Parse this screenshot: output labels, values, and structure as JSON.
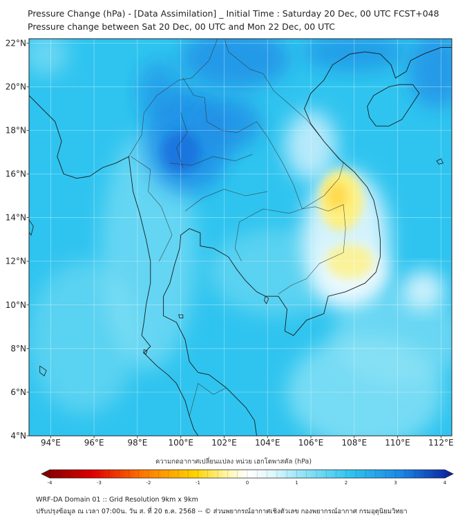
{
  "title_line1": "Pressure Change (hPa) - [Data Assimilation] _ Initial Time : Saturday 20 Dec, 00 UTC FCST+048",
  "title_line2": "Pressure change between Sat 20 Dec, 00 UTC and Mon 22 Dec, 00 UTC",
  "colorbar_title": "ความกดอากาศเปลี่ยนแปลง หน่วย เฮกโตพาสคัล (hPa)",
  "footer_line1": "WRF-DA Domain 01 :: Grid Resolution 9km x 9km",
  "footer_line2": "ปรับปรุงข้อมูล ณ เวลา 07:00น. วัน ส. ที่ 20 ธ.ค. 2568 -- © ส่วนพยากรณ์อากาศเชิงตัวเลข กองพยากรณ์อากาศ กรมอุตุนิยมวิทยา",
  "map": {
    "lon_range": [
      93,
      112.5
    ],
    "lat_range": [
      4,
      22.2
    ],
    "lon_ticks": [
      {
        "value": 94,
        "label": "94°E"
      },
      {
        "value": 96,
        "label": "96°E"
      },
      {
        "value": 98,
        "label": "98°E"
      },
      {
        "value": 100,
        "label": "100°E"
      },
      {
        "value": 102,
        "label": "102°E"
      },
      {
        "value": 104,
        "label": "104°E"
      },
      {
        "value": 106,
        "label": "106°E"
      },
      {
        "value": 108,
        "label": "108°E"
      },
      {
        "value": 110,
        "label": "110°E"
      },
      {
        "value": 112,
        "label": "112°E"
      }
    ],
    "lat_ticks": [
      {
        "value": 4,
        "label": "4°N"
      },
      {
        "value": 6,
        "label": "6°N"
      },
      {
        "value": 8,
        "label": "8°N"
      },
      {
        "value": 10,
        "label": "10°N"
      },
      {
        "value": 12,
        "label": "12°N"
      },
      {
        "value": 14,
        "label": "14°N"
      },
      {
        "value": 16,
        "label": "16°N"
      },
      {
        "value": 18,
        "label": "18°N"
      },
      {
        "value": 20,
        "label": "20°N"
      },
      {
        "value": 22,
        "label": "22°N"
      }
    ],
    "grid": true,
    "field_colors": {
      "background": "#2fc4ef",
      "light": "#8fe3f5",
      "white": "#eefaff",
      "yellow": "#fff07a",
      "yellow_core": "#ffd84a",
      "blue": "#1f8ee6",
      "deep_blue": "#1260d8"
    },
    "coast_color": "#1a1a1a",
    "border_color": "#333333"
  },
  "colorbar": {
    "min": -4,
    "max": 4,
    "ticks": [
      {
        "value": -4,
        "label": "-4"
      },
      {
        "value": -3,
        "label": "-3"
      },
      {
        "value": -2,
        "label": "-2"
      },
      {
        "value": -1,
        "label": "-1"
      },
      {
        "value": 0,
        "label": "0"
      },
      {
        "value": 1,
        "label": "1"
      },
      {
        "value": 2,
        "label": "2"
      },
      {
        "value": 3,
        "label": "3"
      },
      {
        "value": 4,
        "label": "4"
      }
    ],
    "stops": [
      {
        "value": -4,
        "color": "#7a0000"
      },
      {
        "value": -3,
        "color": "#e00000"
      },
      {
        "value": -2,
        "color": "#ff7a00"
      },
      {
        "value": -1,
        "color": "#ffd400"
      },
      {
        "value": -0.4,
        "color": "#fff6a8"
      },
      {
        "value": 0,
        "color": "#ffffff"
      },
      {
        "value": 0.5,
        "color": "#dff7ff"
      },
      {
        "value": 1,
        "color": "#9be6f7"
      },
      {
        "value": 2,
        "color": "#2fc4ef"
      },
      {
        "value": 3,
        "color": "#1a86e6"
      },
      {
        "value": 4,
        "color": "#0a1e9a"
      }
    ]
  }
}
